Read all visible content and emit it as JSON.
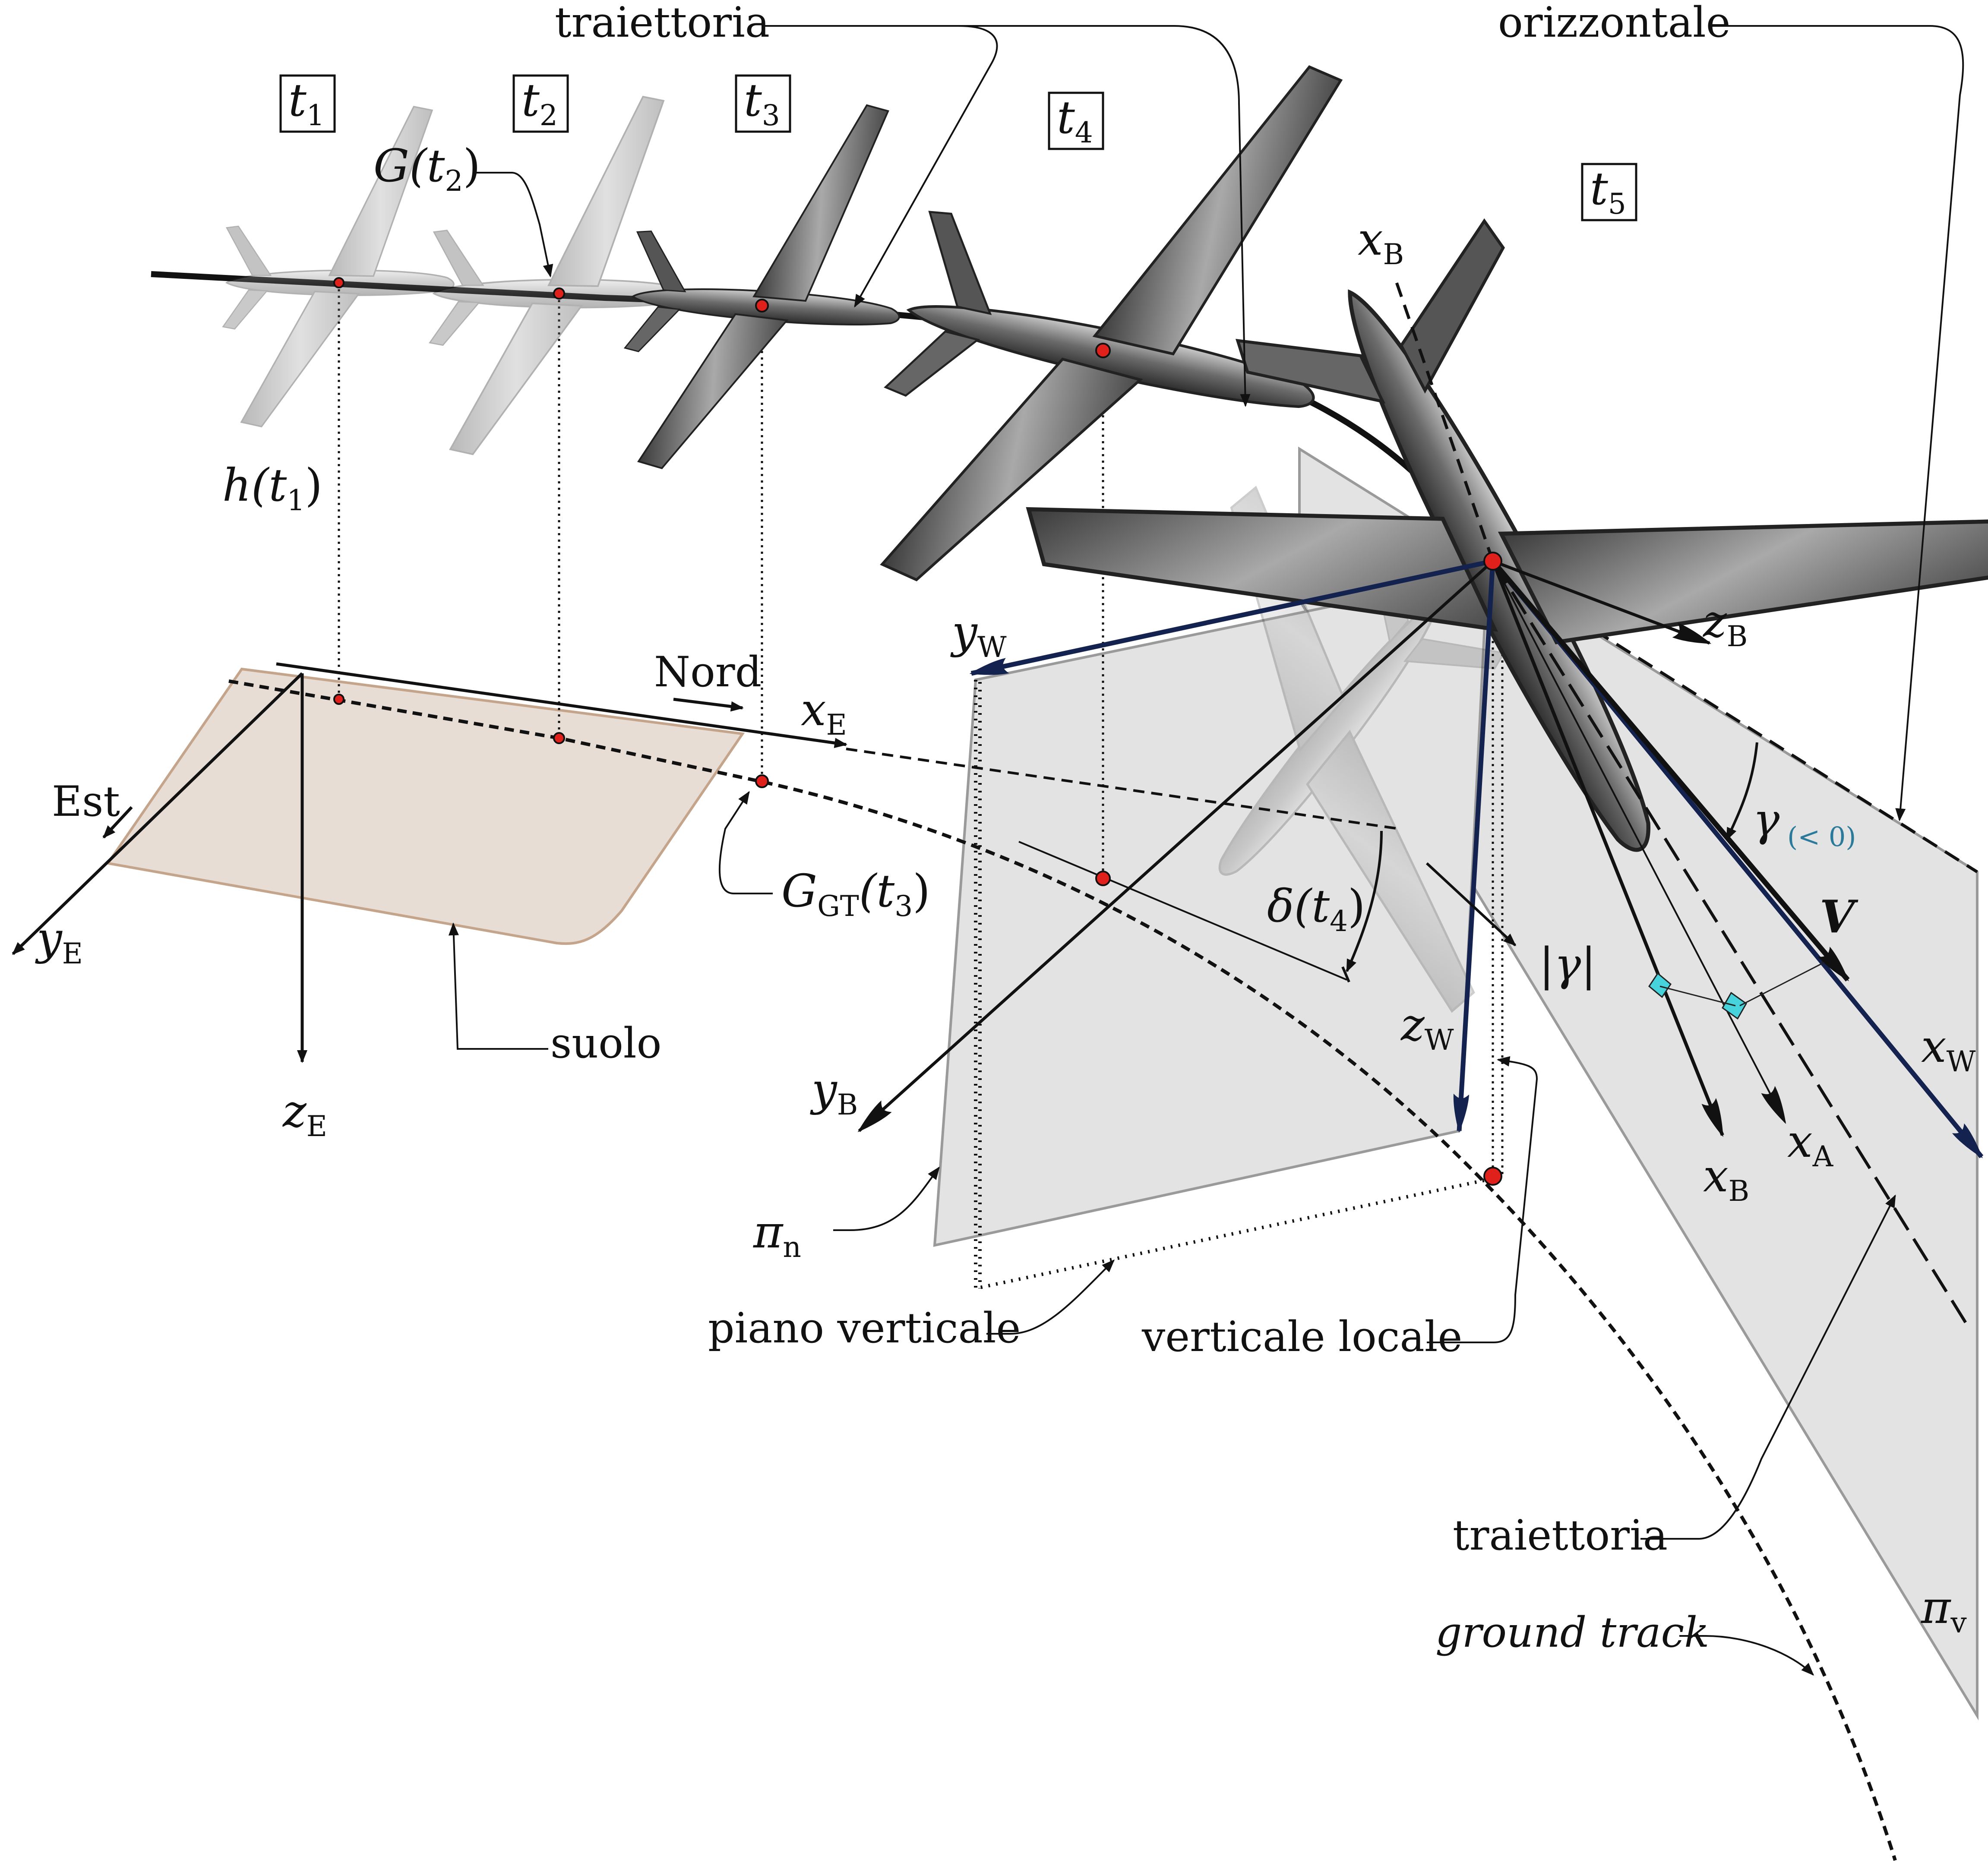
{
  "times": [
    "t",
    "t",
    "t",
    "t",
    "t"
  ],
  "time_subs": [
    "1",
    "2",
    "3",
    "4",
    "5"
  ],
  "labels": {
    "traiettoria_top": "traiettoria",
    "orizzontale": "orizzontale",
    "nord": "Nord",
    "est": "Est",
    "suolo": "suolo",
    "piano_verticale": "piano verticale",
    "verticale_locale": "verticale locale",
    "traiettoria_bottom": "traiettoria",
    "ground_track": "ground track"
  },
  "math": {
    "G_t2": "G(t",
    "G_t2_sub": "2",
    "G_t2_close": ")",
    "h_t1": "h(t",
    "h_t1_sub": "1",
    "h_t1_close": ")",
    "GGT": "G",
    "GGT_sub": "GT",
    "GGT_arg": "(t",
    "GGT_arg_sub": "3",
    "GGT_close": ")",
    "delta": "δ(t",
    "delta_sub": "4",
    "delta_close": ")",
    "gamma": "γ",
    "gamma_note": "(< 0)",
    "abs_gamma": "|γ|",
    "V": "V",
    "pi_n": "π",
    "pi_n_sub": "n",
    "pi_v": "π",
    "pi_v_sub": "v"
  },
  "axes": {
    "xE": {
      "sym": "x",
      "sub": "E"
    },
    "yE": {
      "sym": "y",
      "sub": "E"
    },
    "zE": {
      "sym": "z",
      "sub": "E"
    },
    "xB_top": {
      "sym": "x",
      "sub": "B"
    },
    "zB": {
      "sym": "z",
      "sub": "B"
    },
    "yW": {
      "sym": "y",
      "sub": "W"
    },
    "yB": {
      "sym": "y",
      "sub": "B"
    },
    "zW": {
      "sym": "z",
      "sub": "W"
    },
    "xB": {
      "sym": "x",
      "sub": "B"
    },
    "xA": {
      "sym": "x",
      "sub": "A"
    },
    "xW": {
      "sym": "x",
      "sub": "W"
    }
  },
  "colors": {
    "ground": "#e8ddd4",
    "ground_edge": "#c4a58c",
    "plane_gray": "#e3e3e3",
    "plane_edge": "#9a9a9a",
    "wind_axes": "#14224f",
    "gamma_note": "#2b7a9a",
    "right_angle": "#46d3dc",
    "cg_dot": "#e0201b"
  }
}
